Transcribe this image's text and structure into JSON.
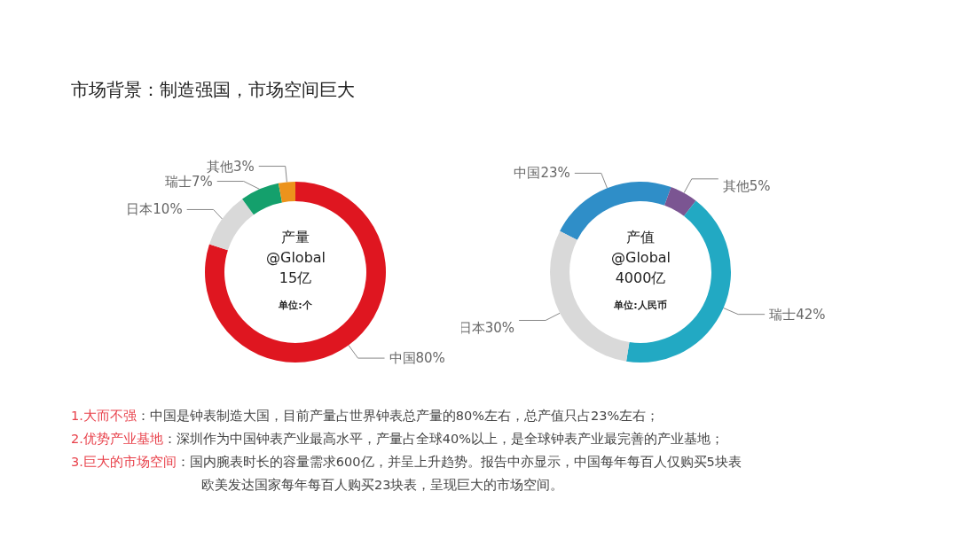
{
  "chart_data": [
    {
      "type": "other",
      "title": "市场背景：制造强国，市场空间巨大"
    },
    {
      "type": "donut",
      "title": "产量",
      "subtitle": "@Global",
      "annotations": [
        "15亿",
        "单位:个"
      ],
      "categories": [
        "中国",
        "日本",
        "瑞士",
        "其他"
      ],
      "values": [
        80,
        10,
        7,
        3
      ],
      "colors": [
        "#df1620",
        "#d9d9d9",
        "#14a06c",
        "#ec931c"
      ],
      "value_labels": [
        "80%",
        "10%",
        "7%",
        "3%"
      ],
      "legend": false
    },
    {
      "type": "donut",
      "title": "产值",
      "subtitle": "@Global",
      "annotations": [
        "4000亿",
        "单位:人民币"
      ],
      "categories": [
        "中国",
        "其他",
        "瑞士",
        "日本"
      ],
      "values": [
        23,
        5,
        42,
        30
      ],
      "colors": [
        "#2f8ec8",
        "#7b5592",
        "#22a9c3",
        "#d9d9d9"
      ],
      "value_labels": [
        "23%",
        "5%",
        "42%",
        "30%"
      ],
      "legend": false
    },
    {
      "type": "other",
      "annotations": [
        "1.大而不强",
        "：中国是钟表制造大国，目前产量占世界钟表总产量的80%左右，总产值只占23%左右；",
        "2.优势产业基地",
        "：深圳作为中国钟表产业最高水平，产量占全球40%以上，是全球钟表产业最完善的产业基地；",
        "3.巨大的市场空间",
        "：国内腕表时长的容量需求600亿，并呈上升趋势。报告中亦显示，中国每年每百人仅购买5块表",
        "欧美发达国家每年每百人购买23块表，呈现巨大的市场空间。"
      ]
    }
  ]
}
